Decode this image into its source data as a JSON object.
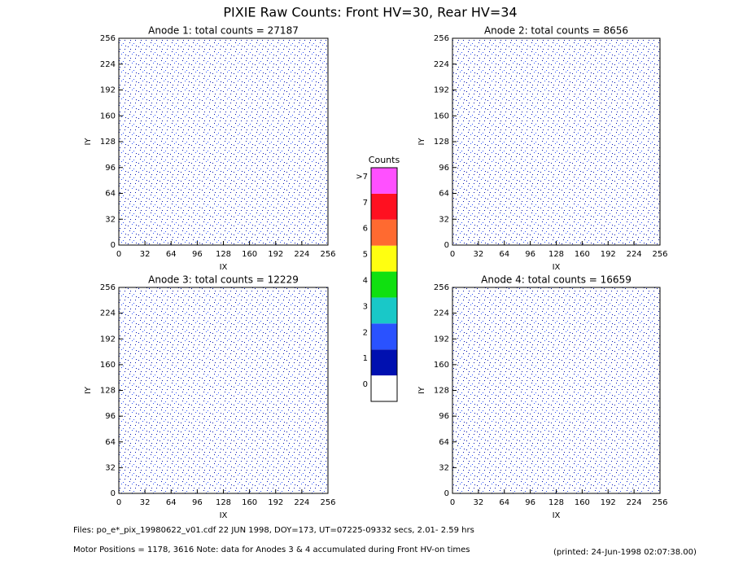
{
  "title": "PIXIE Raw Counts:  Front HV=30, Rear HV=34",
  "chart_data": [
    {
      "type": "heatmap",
      "title": "Anode 1: total counts = 27187",
      "xlabel": "IX",
      "ylabel": "IY",
      "xlim": [
        0,
        256
      ],
      "ylim": [
        0,
        256
      ],
      "xticks": [
        0,
        32,
        64,
        96,
        128,
        160,
        192,
        224,
        256
      ],
      "yticks": [
        0,
        32,
        64,
        96,
        128,
        160,
        192,
        224,
        256
      ]
    },
    {
      "type": "heatmap",
      "title": "Anode 2: total counts = 8656",
      "xlabel": "IX",
      "ylabel": "IY",
      "xlim": [
        0,
        256
      ],
      "ylim": [
        0,
        256
      ],
      "xticks": [
        0,
        32,
        64,
        96,
        128,
        160,
        192,
        224,
        256
      ],
      "yticks": [
        0,
        32,
        64,
        96,
        128,
        160,
        192,
        224,
        256
      ]
    },
    {
      "type": "heatmap",
      "title": "Anode 3: total counts = 12229",
      "xlabel": "IX",
      "ylabel": "IY",
      "xlim": [
        0,
        256
      ],
      "ylim": [
        0,
        256
      ],
      "xticks": [
        0,
        32,
        64,
        96,
        128,
        160,
        192,
        224,
        256
      ],
      "yticks": [
        0,
        32,
        64,
        96,
        128,
        160,
        192,
        224,
        256
      ]
    },
    {
      "type": "heatmap",
      "title": "Anode 4: total counts = 16659",
      "xlabel": "IX",
      "ylabel": "IY",
      "xlim": [
        0,
        256
      ],
      "ylim": [
        0,
        256
      ],
      "xticks": [
        0,
        32,
        64,
        96,
        128,
        160,
        192,
        224,
        256
      ],
      "yticks": [
        0,
        32,
        64,
        96,
        128,
        160,
        192,
        224,
        256
      ]
    }
  ],
  "colorbar": {
    "title": "Counts",
    "ticks": [
      0,
      1,
      2,
      3,
      4,
      5,
      6,
      7,
      {
        "value": 8,
        "label": ">7"
      }
    ],
    "colors": [
      "#ffffff",
      "#0010b0",
      "#2a52ff",
      "#19c8c8",
      "#10e010",
      "#ffff10",
      "#ff6a30",
      "#ff1020",
      "#ff50ff"
    ]
  },
  "footer": {
    "line1": "Files: po_e*_pix_19980622_v01.cdf    22 JUN 1998, DOY=173, UT=07225-09332 secs,  2.01- 2.59 hrs",
    "line2": "Motor Positions = 1178, 3616    Note: data for Anodes 3 & 4 accumulated during Front HV-on times",
    "printed": "(printed: 24-Jun-1998 02:07:38.00)"
  }
}
